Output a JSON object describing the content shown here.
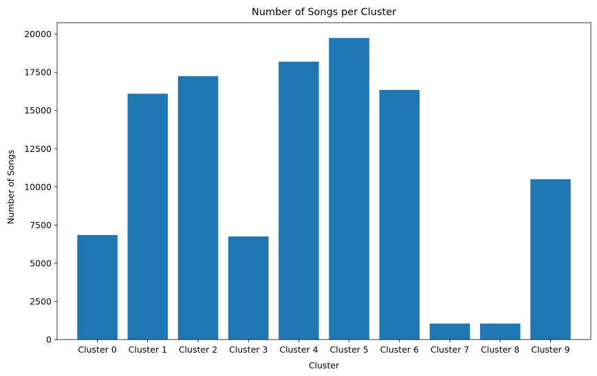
{
  "chart_data": {
    "type": "bar",
    "title": "Number of Songs per Cluster",
    "xlabel": "Cluster",
    "ylabel": "Number of Songs",
    "categories": [
      "Cluster 0",
      "Cluster 1",
      "Cluster 2",
      "Cluster 3",
      "Cluster 4",
      "Cluster 5",
      "Cluster 6",
      "Cluster 7",
      "Cluster 8",
      "Cluster 9"
    ],
    "values": [
      6850,
      16100,
      17250,
      6750,
      18200,
      19750,
      16350,
      1050,
      1050,
      10500
    ],
    "ylim": [
      0,
      20750
    ],
    "yticks": [
      0,
      2500,
      5000,
      7500,
      10000,
      12500,
      15000,
      17500,
      20000
    ],
    "grid": false,
    "bar_color": "#1f77b4"
  }
}
